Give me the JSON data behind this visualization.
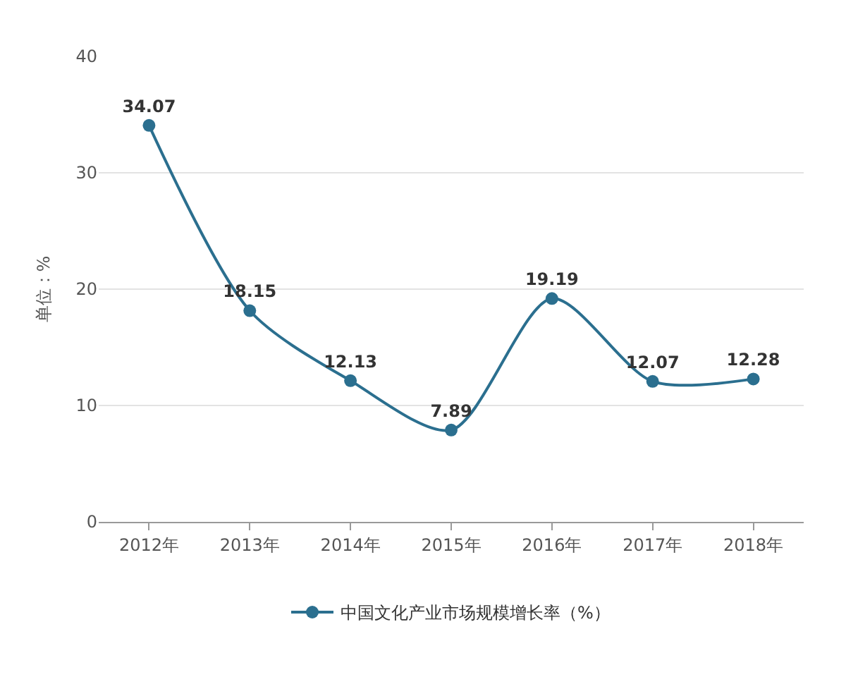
{
  "chart_data": {
    "type": "line",
    "ylabel": "单位：%",
    "categories": [
      "2012年",
      "2013年",
      "2014年",
      "2015年",
      "2016年",
      "2017年",
      "2018年"
    ],
    "series": [
      {
        "name": "中国文化产业市场规模增长率（%）",
        "color": "#2b6f8f",
        "values": [
          34.07,
          18.15,
          12.13,
          7.89,
          19.19,
          12.07,
          12.28
        ]
      }
    ],
    "ylim": [
      0,
      40
    ],
    "yticks": [
      0,
      10,
      20,
      30,
      40
    ],
    "grid": "y",
    "legend": "bottom",
    "marker": "circle",
    "line_style": "solid",
    "data_labels": true
  }
}
